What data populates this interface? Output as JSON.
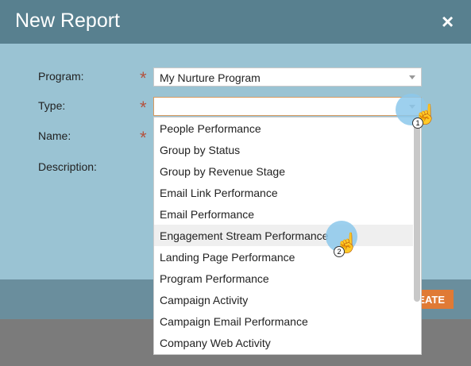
{
  "dialog": {
    "title": "New Report",
    "close": "×",
    "fields": [
      {
        "label": "Program:",
        "required": true,
        "value": "My Nurture Program"
      },
      {
        "label": "Type:",
        "required": true
      },
      {
        "label": "Name:",
        "required": true
      },
      {
        "label": "Description:",
        "required": false
      }
    ],
    "required_mark": "*",
    "dropdown": {
      "options": [
        "People Performance",
        "Group by Status",
        "Group by Revenue Stage",
        "Email Link Performance",
        "Email Performance",
        "Engagement Stream Performance",
        "Landing Page Performance",
        "Program Performance",
        "Campaign Activity",
        "Campaign Email Performance",
        "Company Web Activity"
      ],
      "highlighted": 5
    },
    "button": "CREATE",
    "steps": [
      "1",
      "2"
    ]
  }
}
